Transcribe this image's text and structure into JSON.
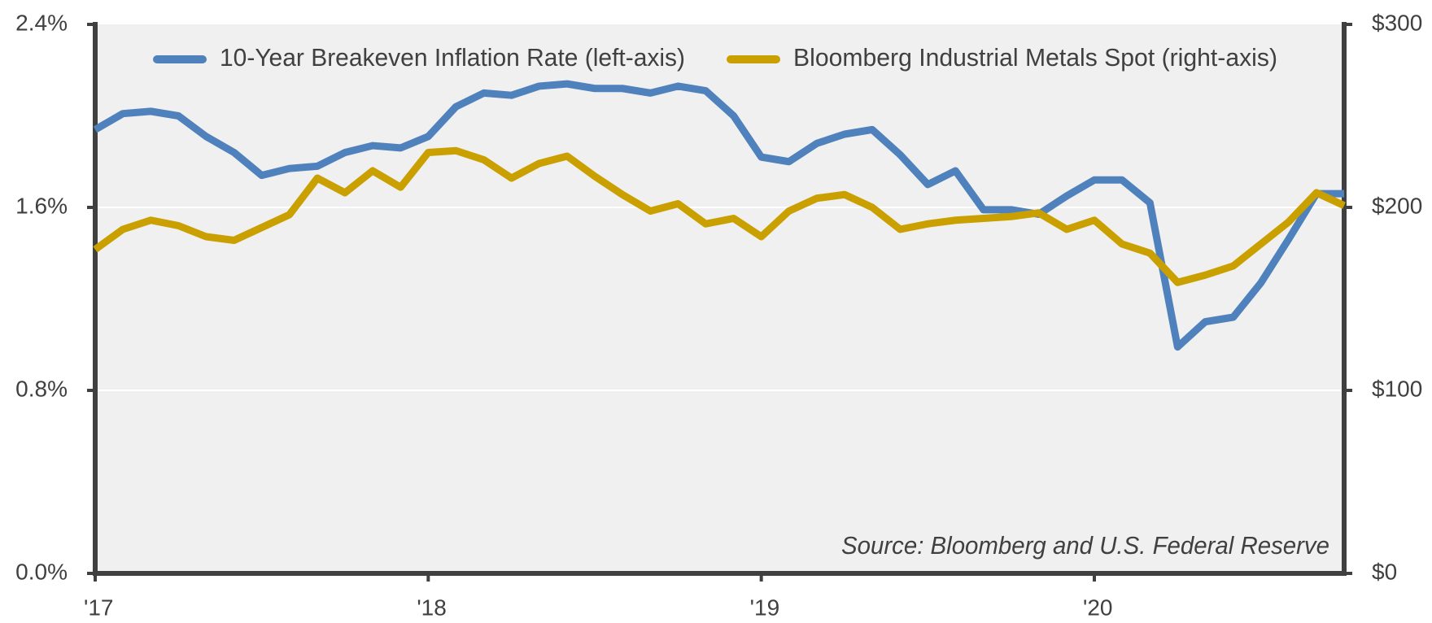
{
  "chart_data": {
    "type": "line",
    "annotation": "Source: Bloomberg and U.S. Federal Reserve",
    "x": [
      2017,
      2017.083,
      2017.167,
      2017.25,
      2017.333,
      2017.417,
      2017.5,
      2017.583,
      2017.667,
      2017.75,
      2017.833,
      2017.917,
      2018,
      2018.083,
      2018.167,
      2018.25,
      2018.333,
      2018.417,
      2018.5,
      2018.583,
      2018.667,
      2018.75,
      2018.833,
      2018.917,
      2019,
      2019.083,
      2019.167,
      2019.25,
      2019.333,
      2019.417,
      2019.5,
      2019.583,
      2019.667,
      2019.75,
      2019.833,
      2019.917,
      2020,
      2020.083,
      2020.167,
      2020.25,
      2020.333,
      2020.417,
      2020.5,
      2020.583,
      2020.667,
      2020.75
    ],
    "series": [
      {
        "name": "10-Year Breakeven Inflation Rate (left-axis)",
        "color": "#4f81bd",
        "axis": "y",
        "values": [
          1.94,
          2.01,
          2.02,
          2.0,
          1.91,
          1.84,
          1.74,
          1.77,
          1.78,
          1.84,
          1.87,
          1.86,
          1.91,
          2.04,
          2.1,
          2.09,
          2.13,
          2.14,
          2.12,
          2.12,
          2.1,
          2.13,
          2.11,
          2.0,
          1.82,
          1.8,
          1.88,
          1.92,
          1.94,
          1.83,
          1.7,
          1.76,
          1.59,
          1.59,
          1.57,
          1.65,
          1.72,
          1.72,
          1.62,
          0.99,
          1.1,
          1.12,
          1.27,
          1.46,
          1.66,
          1.66
        ]
      },
      {
        "name": "Bloomberg Industrial Metals Spot (right-axis)",
        "color": "#c9a000",
        "axis": "y2",
        "values": [
          177,
          188,
          193,
          190,
          184,
          182,
          189,
          196,
          216,
          208,
          220,
          211,
          230,
          231,
          226,
          216,
          224,
          228,
          217,
          207,
          198,
          202,
          191,
          194,
          184,
          198,
          205,
          207,
          200,
          188,
          191,
          193,
          194,
          195,
          197,
          188,
          193,
          180,
          175,
          159,
          163,
          168,
          180,
          192,
          208,
          201
        ]
      }
    ],
    "xlim": [
      2017,
      2020.75
    ],
    "xticks": [
      {
        "value": 2017,
        "label": "'17"
      },
      {
        "value": 2018,
        "label": "'18"
      },
      {
        "value": 2019,
        "label": "'19"
      },
      {
        "value": 2020,
        "label": "'20"
      }
    ],
    "ylim": [
      0,
      2.4
    ],
    "yticks": [
      {
        "value": 0,
        "label": "0.0%"
      },
      {
        "value": 0.8,
        "label": "0.8%"
      },
      {
        "value": 1.6,
        "label": "1.6%"
      },
      {
        "value": 2.4,
        "label": "2.4%"
      }
    ],
    "y2lim": [
      0,
      300
    ],
    "y2ticks": [
      {
        "value": 0,
        "label": "$0"
      },
      {
        "value": 100,
        "label": "$100"
      },
      {
        "value": 200,
        "label": "$200"
      },
      {
        "value": 300,
        "label": "$300"
      }
    ],
    "grid": true,
    "legend": "top"
  }
}
